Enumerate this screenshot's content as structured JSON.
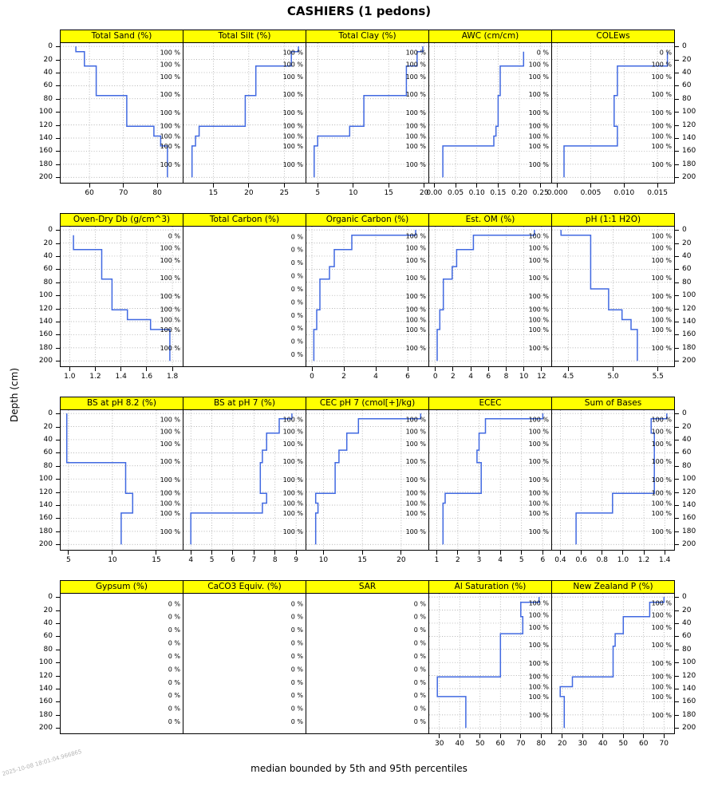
{
  "title": "CASHIERS (1 pedons)",
  "caption": "median bounded by 5th and 95th percentiles",
  "y_axis_label": "Depth (cm)",
  "timestamp": "2025-10-08 18:01:04.966865",
  "colors": {
    "strip_bg": "#FFFF00",
    "strip_border": "#000000",
    "line": "#4169E1",
    "grid_line": "#9C9C9C",
    "label": "#000000",
    "stamp": "#B4B4B4"
  },
  "chart_data": {
    "type": "line",
    "variant": "step-depth-profile",
    "title": "CASHIERS (1 pedons)",
    "ylabel": "Depth (cm)",
    "caption": "median bounded by 5th and 95th percentiles",
    "ylim": [
      0,
      200
    ],
    "depth_ticks": [
      0,
      20,
      40,
      60,
      80,
      100,
      120,
      140,
      160,
      180,
      200
    ],
    "depth_domain": [
      -5,
      207
    ],
    "pct_full": "100 %",
    "pct_zero": "0 %",
    "horizon_label_depths": [
      9,
      27,
      46,
      73,
      101,
      121,
      137,
      152,
      180
    ],
    "empty_label_depths": [
      10,
      30,
      50,
      70,
      90,
      110,
      130,
      150,
      170,
      190
    ],
    "rows": [
      {
        "panels": [
          {
            "title": "Total Sand (%)",
            "x_range": [
              51.5,
              87.5
            ],
            "x_tick_values": [
              60,
              70,
              80
            ],
            "x_tick_labels": [
              "60",
              "70",
              "80"
            ],
            "label_mode": "all100",
            "segments": [
              [
                0,
                8,
                56
              ],
              [
                8,
                30,
                58.5
              ],
              [
                30,
                75,
                62
              ],
              [
                75,
                122,
                71
              ],
              [
                122,
                137,
                79
              ],
              [
                137,
                152,
                81
              ],
              [
                152,
                200,
                83
              ]
            ]
          },
          {
            "title": "Total Silt (%)",
            "x_range": [
              10.8,
              28
            ],
            "x_tick_values": [
              15,
              20,
              25
            ],
            "x_tick_labels": [
              "15",
              "20",
              "25"
            ],
            "label_mode": "all100",
            "segments": [
              [
                0,
                8,
                27
              ],
              [
                8,
                30,
                26
              ],
              [
                30,
                75,
                21
              ],
              [
                75,
                122,
                19.5
              ],
              [
                122,
                137,
                13
              ],
              [
                137,
                152,
                12.5
              ],
              [
                152,
                200,
                12
              ]
            ]
          },
          {
            "title": "Total Clay (%)",
            "x_range": [
              3.4,
              20.6
            ],
            "x_tick_values": [
              5,
              10,
              15,
              20
            ],
            "x_tick_labels": [
              "5",
              "10",
              "15",
              "20"
            ],
            "label_mode": "all100",
            "segments": [
              [
                0,
                8,
                19.8
              ],
              [
                8,
                30,
                19
              ],
              [
                30,
                75,
                17.5
              ],
              [
                75,
                122,
                11.5
              ],
              [
                122,
                137,
                9.5
              ],
              [
                137,
                152,
                5
              ],
              [
                152,
                200,
                4.5
              ]
            ]
          },
          {
            "title": "AWC (cm/cm)",
            "x_range": [
              -0.012,
              0.275
            ],
            "x_tick_values": [
              0,
              0.05,
              0.1,
              0.15,
              0.2,
              0.25
            ],
            "x_tick_labels": [
              "0.00",
              "0.05",
              "0.10",
              "0.15",
              "0.20",
              "0.25"
            ],
            "label_mode": "zero_top",
            "segments": [
              [
                8,
                30,
                0.21
              ],
              [
                30,
                75,
                0.155
              ],
              [
                75,
                122,
                0.15
              ],
              [
                122,
                137,
                0.145
              ],
              [
                137,
                152,
                0.14
              ],
              [
                152,
                200,
                0.02
              ]
            ]
          },
          {
            "title": "COLEws",
            "x_range": [
              -0.0008,
              0.0175
            ],
            "x_tick_values": [
              0,
              0.005,
              0.01,
              0.015
            ],
            "x_tick_labels": [
              "0.000",
              "0.005",
              "0.010",
              "0.015"
            ],
            "label_mode": "zero_top",
            "segments": [
              [
                8,
                30,
                0.0165
              ],
              [
                30,
                75,
                0.009
              ],
              [
                75,
                122,
                0.0085
              ],
              [
                122,
                152,
                0.009
              ],
              [
                152,
                200,
                0.001
              ]
            ]
          }
        ]
      },
      {
        "panels": [
          {
            "title": "Oven-Dry Db (g/cm^3)",
            "x_range": [
              0.93,
              1.88
            ],
            "x_tick_values": [
              1.0,
              1.2,
              1.4,
              1.6,
              1.8
            ],
            "x_tick_labels": [
              "1.0",
              "1.2",
              "1.4",
              "1.6",
              "1.8"
            ],
            "label_mode": "zero_top",
            "segments": [
              [
                8,
                30,
                1.03
              ],
              [
                30,
                75,
                1.25
              ],
              [
                75,
                122,
                1.33
              ],
              [
                122,
                137,
                1.45
              ],
              [
                137,
                152,
                1.63
              ],
              [
                152,
                200,
                1.78
              ]
            ]
          },
          {
            "title": "Total Carbon (%)",
            "x_range": [
              0,
              1
            ],
            "x_tick_values": [],
            "x_tick_labels": [],
            "label_mode": "empty",
            "segments": []
          },
          {
            "title": "Organic Carbon (%)",
            "x_range": [
              -0.35,
              7.3
            ],
            "x_tick_values": [
              0,
              2,
              4,
              6
            ],
            "x_tick_labels": [
              "0",
              "2",
              "4",
              "6"
            ],
            "label_mode": "all100",
            "segments": [
              [
                0,
                8,
                6.5
              ],
              [
                8,
                30,
                2.5
              ],
              [
                30,
                56,
                1.4
              ],
              [
                56,
                75,
                1.1
              ],
              [
                75,
                122,
                0.5
              ],
              [
                122,
                152,
                0.3
              ],
              [
                152,
                200,
                0.12
              ]
            ]
          },
          {
            "title": "Est. OM (%)",
            "x_range": [
              -0.7,
              13.1
            ],
            "x_tick_values": [
              0,
              2,
              4,
              6,
              8,
              10,
              12
            ],
            "x_tick_labels": [
              "0",
              "2",
              "4",
              "6",
              "8",
              "10",
              "12"
            ],
            "label_mode": "all100",
            "segments": [
              [
                0,
                8,
                11.2
              ],
              [
                8,
                30,
                4.3
              ],
              [
                30,
                56,
                2.4
              ],
              [
                56,
                75,
                1.9
              ],
              [
                75,
                122,
                0.9
              ],
              [
                122,
                152,
                0.5
              ],
              [
                152,
                200,
                0.2
              ]
            ]
          },
          {
            "title": "pH (1:1 H2O)",
            "x_range": [
              4.32,
              5.68
            ],
            "x_tick_values": [
              4.5,
              5.0,
              5.5
            ],
            "x_tick_labels": [
              "4.5",
              "5.0",
              "5.5"
            ],
            "label_mode": "all100",
            "segments": [
              [
                0,
                8,
                4.42
              ],
              [
                8,
                90,
                4.75
              ],
              [
                90,
                122,
                4.95
              ],
              [
                122,
                137,
                5.1
              ],
              [
                137,
                152,
                5.2
              ],
              [
                152,
                200,
                5.27
              ]
            ]
          }
        ]
      },
      {
        "panels": [
          {
            "title": "BS at pH 8.2 (%)",
            "x_range": [
              4.1,
              18
            ],
            "x_tick_values": [
              5,
              10,
              15
            ],
            "x_tick_labels": [
              "5",
              "10",
              "15"
            ],
            "label_mode": "all100",
            "segments": [
              [
                0,
                75,
                4.8
              ],
              [
                75,
                122,
                11.5
              ],
              [
                122,
                152,
                12.3
              ],
              [
                152,
                200,
                11
              ]
            ]
          },
          {
            "title": "BS at pH 7 (%)",
            "x_range": [
              3.65,
              9.45
            ],
            "x_tick_values": [
              4,
              5,
              6,
              7,
              8,
              9
            ],
            "x_tick_labels": [
              "4",
              "5",
              "6",
              "7",
              "8",
              "9"
            ],
            "label_mode": "all100",
            "segments": [
              [
                0,
                8,
                8.8
              ],
              [
                8,
                30,
                8.2
              ],
              [
                30,
                56,
                7.6
              ],
              [
                56,
                75,
                7.4
              ],
              [
                75,
                122,
                7.3
              ],
              [
                122,
                137,
                7.6
              ],
              [
                137,
                152,
                7.4
              ],
              [
                152,
                200,
                4
              ]
            ]
          },
          {
            "title": "CEC pH 7 (cmol[+]/kg)",
            "x_range": [
              7.8,
              23.5
            ],
            "x_tick_values": [
              10,
              15,
              20
            ],
            "x_tick_labels": [
              "10",
              "15",
              "20"
            ],
            "label_mode": "all100",
            "segments": [
              [
                0,
                8,
                22.5
              ],
              [
                8,
                30,
                14.5
              ],
              [
                30,
                56,
                13
              ],
              [
                56,
                75,
                12
              ],
              [
                75,
                122,
                11.5
              ],
              [
                122,
                137,
                9
              ],
              [
                137,
                152,
                9.3
              ],
              [
                152,
                200,
                9
              ]
            ]
          },
          {
            "title": "ECEC",
            "x_range": [
              0.65,
              6.4
            ],
            "x_tick_values": [
              1,
              2,
              3,
              4,
              5,
              6
            ],
            "x_tick_labels": [
              "1",
              "2",
              "3",
              "4",
              "5",
              "6"
            ],
            "label_mode": "all100",
            "segments": [
              [
                0,
                8,
                6
              ],
              [
                8,
                30,
                3.3
              ],
              [
                30,
                56,
                3
              ],
              [
                56,
                75,
                2.9
              ],
              [
                75,
                122,
                3.1
              ],
              [
                122,
                137,
                1.4
              ],
              [
                137,
                200,
                1.3
              ]
            ]
          },
          {
            "title": "Sum of Bases",
            "x_range": [
              0.32,
              1.49
            ],
            "x_tick_values": [
              0.4,
              0.6,
              0.8,
              1.0,
              1.2,
              1.4
            ],
            "x_tick_labels": [
              "0.4",
              "0.6",
              "0.8",
              "1.0",
              "1.2",
              "1.4"
            ],
            "label_mode": "all100",
            "segments": [
              [
                0,
                8,
                1.42
              ],
              [
                8,
                30,
                1.27
              ],
              [
                30,
                122,
                1.3
              ],
              [
                122,
                152,
                0.9
              ],
              [
                152,
                200,
                0.55
              ]
            ]
          }
        ]
      },
      {
        "panels": [
          {
            "title": "Gypsum (%)",
            "x_range": [
              0,
              1
            ],
            "x_tick_values": [],
            "x_tick_labels": [],
            "label_mode": "empty",
            "segments": []
          },
          {
            "title": "CaCO3 Equiv. (%)",
            "x_range": [
              0,
              1
            ],
            "x_tick_values": [],
            "x_tick_labels": [],
            "label_mode": "empty",
            "segments": []
          },
          {
            "title": "SAR",
            "x_range": [
              0,
              1
            ],
            "x_tick_values": [],
            "x_tick_labels": [],
            "label_mode": "empty",
            "segments": []
          },
          {
            "title": "Al Saturation (%)",
            "x_range": [
              25,
              85
            ],
            "x_tick_values": [
              30,
              40,
              50,
              60,
              70,
              80
            ],
            "x_tick_labels": [
              "30",
              "40",
              "50",
              "60",
              "70",
              "80"
            ],
            "label_mode": "all100",
            "segments": [
              [
                0,
                8,
                79
              ],
              [
                8,
                30,
                70
              ],
              [
                30,
                56,
                71
              ],
              [
                56,
                122,
                60
              ],
              [
                122,
                152,
                29
              ],
              [
                152,
                200,
                43
              ]
            ]
          },
          {
            "title": "New Zealand P (%)",
            "x_range": [
              15,
              75
            ],
            "x_tick_values": [
              20,
              30,
              40,
              50,
              60,
              70
            ],
            "x_tick_labels": [
              "20",
              "30",
              "40",
              "50",
              "60",
              "70"
            ],
            "label_mode": "all100",
            "segments": [
              [
                0,
                8,
                70
              ],
              [
                8,
                30,
                63
              ],
              [
                30,
                56,
                50
              ],
              [
                56,
                75,
                46
              ],
              [
                75,
                122,
                45
              ],
              [
                122,
                137,
                25
              ],
              [
                137,
                152,
                19
              ],
              [
                152,
                200,
                21
              ]
            ]
          }
        ]
      }
    ]
  }
}
